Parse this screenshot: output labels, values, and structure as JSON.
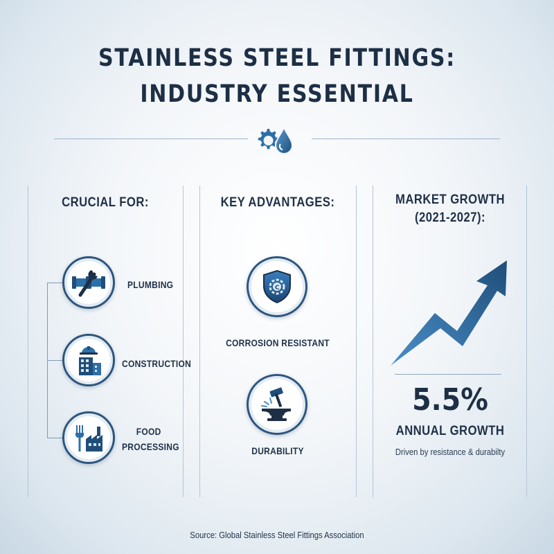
{
  "title": {
    "line1": "STAINLESS STEEL FITTINGS:",
    "line2": "INDUSTRY ESSENTIAL"
  },
  "columns": {
    "crucial": {
      "heading": "CRUCIAL FOR:",
      "items": [
        {
          "label": "PLUMBING",
          "icon": "pipe-wrench-icon"
        },
        {
          "label": "CONSTRUCTION",
          "icon": "building-worker-icon"
        },
        {
          "label_line1": "FOOD",
          "label_line2": "PROCESSING",
          "icon": "fork-factory-icon"
        }
      ]
    },
    "advantages": {
      "heading": "KEY ADVANTAGES:",
      "items": [
        {
          "label": "CORROSION RESISTANT",
          "icon": "shield-gear-icon"
        },
        {
          "label": "DURABILITY",
          "icon": "hammer-anvil-icon"
        }
      ]
    },
    "market": {
      "heading_line1": "MARKET GROWTH",
      "heading_line2": "(2021-2027):",
      "value": "5.5%",
      "value_label": "ANNUAL GROWTH",
      "note": "Driven by resistance & durabilty",
      "trend_icon": "upward-trend-arrow-icon"
    }
  },
  "source": "Source: Global Stainless Steel Fittings Association",
  "colors": {
    "navy": "#1d2f45",
    "accent_blue": "#2d6fa8",
    "light_blue": "#4a8fc9"
  }
}
